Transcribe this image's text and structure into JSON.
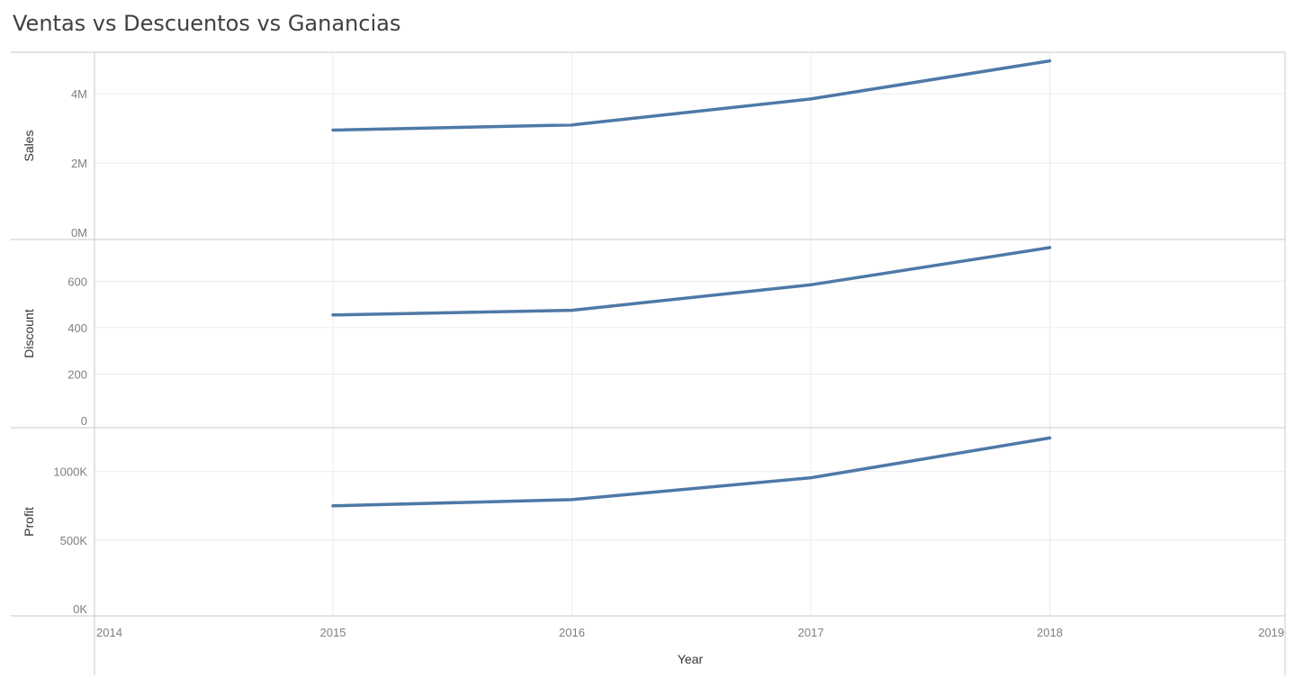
{
  "title": "Ventas vs Descuentos vs Ganancias",
  "colors": {
    "line": "#4e79a7",
    "grid": "#ececec",
    "axis": "#c8c8c8"
  },
  "chart_data": {
    "type": "line",
    "xlabel": "Year",
    "x_ticks": [
      "2014",
      "2015",
      "2016",
      "2017",
      "2018",
      "2019"
    ],
    "xlim": [
      2014,
      2019
    ],
    "x": [
      2015,
      2016,
      2017,
      2018
    ],
    "grid": true,
    "panels": [
      {
        "name": "Sales",
        "ylabel": "Sales",
        "ylim": [
          0,
          5200000
        ],
        "ticks": [
          {
            "v": 0,
            "label": "0M"
          },
          {
            "v": 2000000,
            "label": "2M"
          },
          {
            "v": 4000000,
            "label": "4M"
          }
        ],
        "values": [
          2950000,
          3100000,
          3850000,
          4950000
        ]
      },
      {
        "name": "Discount",
        "ylabel": "Discount",
        "ylim": [
          0,
          780
        ],
        "ticks": [
          {
            "v": 0,
            "label": "0"
          },
          {
            "v": 200,
            "label": "200"
          },
          {
            "v": 400,
            "label": "400"
          },
          {
            "v": 600,
            "label": "600"
          }
        ],
        "values": [
          455,
          475,
          585,
          745
        ]
      },
      {
        "name": "Profit",
        "ylabel": "Profit",
        "ylim": [
          0,
          1320000
        ],
        "ticks": [
          {
            "v": 0,
            "label": "0K"
          },
          {
            "v": 500000,
            "label": "500K"
          },
          {
            "v": 1000000,
            "label": "1000K"
          }
        ],
        "values": [
          750000,
          795000,
          955000,
          1245000
        ]
      }
    ]
  }
}
